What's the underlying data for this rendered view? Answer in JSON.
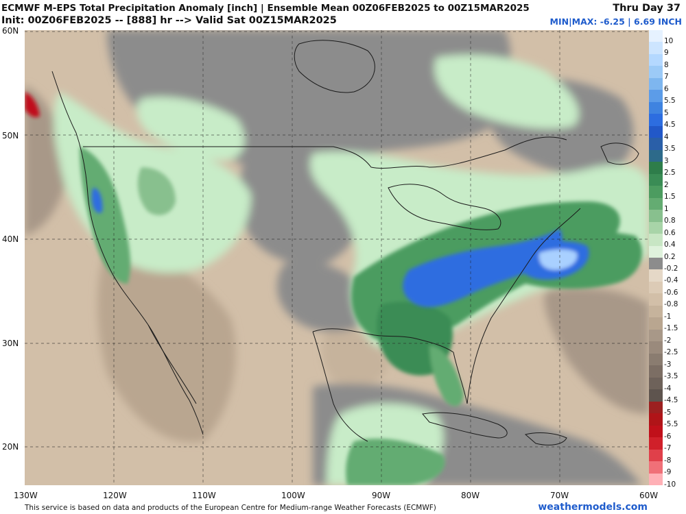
{
  "header": {
    "title": "ECMWF M-EPS Total Precipitation Anomaly [inch] | Ensemble Mean 00Z06FEB2025 to 00Z15MAR2025",
    "init_line": "Init: 00Z06FEB2025 -- [888] hr --> Valid Sat 00Z15MAR2025",
    "thru": "Thru Day 37",
    "minmax": "MIN|MAX: -6.25 | 6.69 INCH"
  },
  "map": {
    "lat_labels": [
      "60N",
      "50N",
      "40N",
      "30N",
      "20N"
    ],
    "lon_labels": [
      "130W",
      "120W",
      "110W",
      "100W",
      "90W",
      "80W",
      "70W",
      "60W"
    ],
    "colors": {
      "dry_tan": "#d2bfa8",
      "dry_brown": "#a89888",
      "neutral_gray": "#8c8c8c",
      "wet_light": "#c8ecc8",
      "wet_green": "#5ea86e",
      "wet_dark": "#2e7d4a",
      "wet_blue": "#2d6de0",
      "wet_max": "#a9d0ff",
      "dry_red": "#c0101a"
    }
  },
  "colorbar": {
    "labels": [
      "10",
      "9",
      "8",
      "7",
      "6",
      "5.5",
      "5",
      "4.5",
      "4",
      "3.5",
      "3",
      "2.5",
      "2",
      "1.5",
      "1",
      "0.8",
      "0.6",
      "0.4",
      "0.2",
      "-0.2",
      "-0.4",
      "-0.6",
      "-0.8",
      "-1",
      "-1.5",
      "-2",
      "-2.5",
      "-3",
      "-3.5",
      "-4",
      "-4.5",
      "-5",
      "-5.5",
      "-6",
      "-7",
      "-8",
      "-9",
      "-10"
    ],
    "colors": [
      "#e6f2ff",
      "#cde5ff",
      "#b4d8ff",
      "#9ccaf7",
      "#7eb6ef",
      "#5c9ce8",
      "#3f83e0",
      "#2d6de0",
      "#2258c8",
      "#2a5fa8",
      "#2d6a8a",
      "#2e7d4a",
      "#3a8c55",
      "#4c9c60",
      "#64ac72",
      "#88c08e",
      "#a8d4a8",
      "#c8e6c4",
      "#dff2dc",
      "#8c8c8c",
      "#e5d8c7",
      "#dccbb6",
      "#d2bfa8",
      "#c6b39c",
      "#b9a690",
      "#a89888",
      "#9a8a7c",
      "#8a7c70",
      "#7c6e64",
      "#6e625a",
      "#5e544e",
      "#9c2020",
      "#b01418",
      "#c0101a",
      "#d0202a",
      "#e0404a",
      "#f07078",
      "#ffb0b6"
    ]
  },
  "footer": {
    "credit": "This service is based on data and products of the European Centre for Medium-range Weather Forecasts (ECMWF)",
    "brand": "weathermodels.com"
  }
}
